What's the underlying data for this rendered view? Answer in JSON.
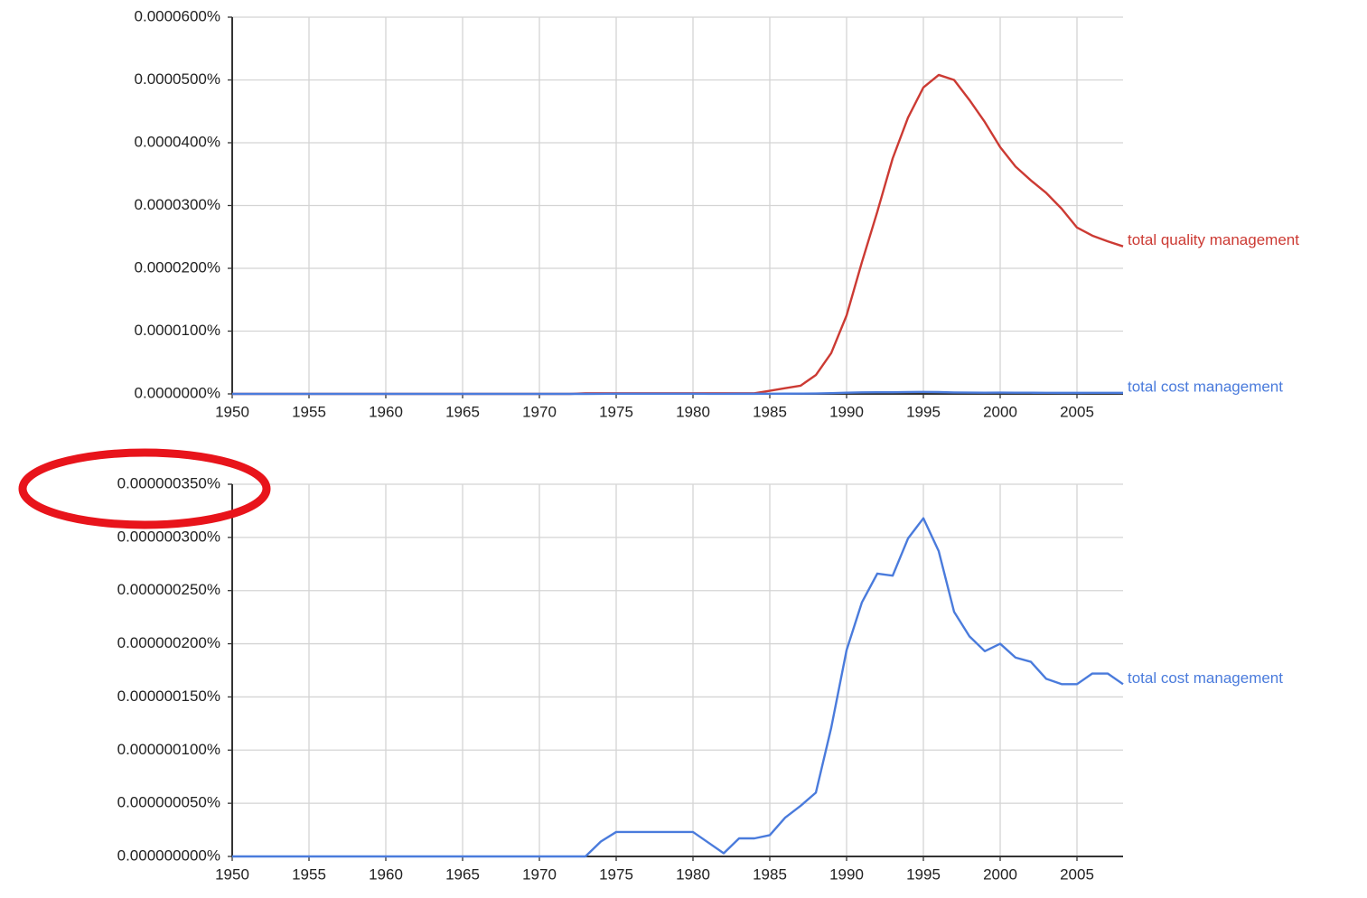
{
  "chart_data": [
    {
      "type": "line",
      "x": [
        1950,
        1951,
        1952,
        1953,
        1954,
        1955,
        1956,
        1957,
        1958,
        1959,
        1960,
        1961,
        1962,
        1963,
        1964,
        1965,
        1966,
        1967,
        1968,
        1969,
        1970,
        1971,
        1972,
        1973,
        1974,
        1975,
        1976,
        1977,
        1978,
        1979,
        1980,
        1981,
        1982,
        1983,
        1984,
        1985,
        1986,
        1987,
        1988,
        1989,
        1990,
        1991,
        1992,
        1993,
        1994,
        1995,
        1996,
        1997,
        1998,
        1999,
        2000,
        2001,
        2002,
        2003,
        2004,
        2005,
        2006,
        2007,
        2008
      ],
      "series": [
        {
          "name": "total quality management",
          "color": "#cc3a33",
          "values": [
            0,
            0,
            0,
            0,
            0,
            0,
            0,
            0,
            0,
            0,
            0,
            0,
            0,
            0,
            0,
            0,
            0,
            0,
            0,
            0,
            0,
            0,
            0,
            1e-07,
            1e-07,
            1e-07,
            1e-07,
            1e-07,
            1e-07,
            1e-07,
            1e-07,
            1e-07,
            1e-07,
            1e-07,
            1e-07,
            5e-07,
            9e-07,
            1.3e-06,
            3e-06,
            6.5e-06,
            1.25e-05,
            2.1e-05,
            2.9e-05,
            3.75e-05,
            4.4e-05,
            4.88e-05,
            5.08e-05,
            5e-05,
            4.68e-05,
            4.33e-05,
            3.93e-05,
            3.62e-05,
            3.4e-05,
            3.2e-05,
            2.95e-05,
            2.65e-05,
            2.52e-05,
            2.43e-05,
            2.35e-05
          ]
        },
        {
          "name": "total cost management",
          "color": "#4a7bdc",
          "values": [
            0,
            0,
            0,
            0,
            0,
            0,
            0,
            0,
            0,
            0,
            0,
            0,
            0,
            0,
            0,
            0,
            0,
            0,
            0,
            0,
            0,
            0,
            0,
            0,
            1.4e-08,
            2.3e-08,
            2.3e-08,
            2.3e-08,
            2.3e-08,
            2.3e-08,
            2.3e-08,
            1.3e-08,
            3e-09,
            1.7e-08,
            1.7e-08,
            2e-08,
            3.65e-08,
            4.75e-08,
            6e-08,
            1.21e-07,
            1.94e-07,
            2.39e-07,
            2.66e-07,
            2.64e-07,
            2.99e-07,
            3.18e-07,
            2.87e-07,
            2.3e-07,
            2.07e-07,
            1.93e-07,
            2e-07,
            1.87e-07,
            1.83e-07,
            1.67e-07,
            1.62e-07,
            1.62e-07,
            1.72e-07,
            1.72e-07,
            1.62e-07
          ]
        }
      ],
      "xlim": [
        1950,
        2008
      ],
      "xticks": [
        1950,
        1955,
        1960,
        1965,
        1970,
        1975,
        1980,
        1985,
        1990,
        1995,
        2000,
        2005
      ],
      "ylim": [
        0,
        6e-05
      ],
      "yticks": [
        {
          "value": 0,
          "label": "0.0000000%"
        },
        {
          "value": 1e-05,
          "label": "0.0000100%"
        },
        {
          "value": 2e-05,
          "label": "0.0000200%"
        },
        {
          "value": 3e-05,
          "label": "0.0000300%"
        },
        {
          "value": 4e-05,
          "label": "0.0000400%"
        },
        {
          "value": 5e-05,
          "label": "0.0000500%"
        },
        {
          "value": 6e-05,
          "label": "0.0000600%"
        }
      ],
      "grid": true
    },
    {
      "type": "line",
      "x": [
        1950,
        1951,
        1952,
        1953,
        1954,
        1955,
        1956,
        1957,
        1958,
        1959,
        1960,
        1961,
        1962,
        1963,
        1964,
        1965,
        1966,
        1967,
        1968,
        1969,
        1970,
        1971,
        1972,
        1973,
        1974,
        1975,
        1976,
        1977,
        1978,
        1979,
        1980,
        1981,
        1982,
        1983,
        1984,
        1985,
        1986,
        1987,
        1988,
        1989,
        1990,
        1991,
        1992,
        1993,
        1994,
        1995,
        1996,
        1997,
        1998,
        1999,
        2000,
        2001,
        2002,
        2003,
        2004,
        2005,
        2006,
        2007,
        2008
      ],
      "series": [
        {
          "name": "total cost management",
          "color": "#4a7bdc",
          "values": [
            0,
            0,
            0,
            0,
            0,
            0,
            0,
            0,
            0,
            0,
            0,
            0,
            0,
            0,
            0,
            0,
            0,
            0,
            0,
            0,
            0,
            0,
            0,
            0,
            1.4e-08,
            2.3e-08,
            2.3e-08,
            2.3e-08,
            2.3e-08,
            2.3e-08,
            2.3e-08,
            1.3e-08,
            3e-09,
            1.7e-08,
            1.7e-08,
            2e-08,
            3.65e-08,
            4.75e-08,
            6e-08,
            1.21e-07,
            1.94e-07,
            2.39e-07,
            2.66e-07,
            2.64e-07,
            2.99e-07,
            3.18e-07,
            2.87e-07,
            2.3e-07,
            2.07e-07,
            1.93e-07,
            2e-07,
            1.87e-07,
            1.83e-07,
            1.67e-07,
            1.62e-07,
            1.62e-07,
            1.72e-07,
            1.72e-07,
            1.62e-07
          ]
        }
      ],
      "xlim": [
        1950,
        2008
      ],
      "xticks": [
        1950,
        1955,
        1960,
        1965,
        1970,
        1975,
        1980,
        1985,
        1990,
        1995,
        2000,
        2005
      ],
      "ylim": [
        0,
        3.5e-07
      ],
      "yticks": [
        {
          "value": 0,
          "label": "0.000000000%"
        },
        {
          "value": 5e-08,
          "label": "0.000000050%"
        },
        {
          "value": 1e-07,
          "label": "0.000000100%"
        },
        {
          "value": 1.5e-07,
          "label": "0.000000150%"
        },
        {
          "value": 2e-07,
          "label": "0.000000200%"
        },
        {
          "value": 2.5e-07,
          "label": "0.000000250%"
        },
        {
          "value": 3e-07,
          "label": "0.000000300%"
        },
        {
          "value": 3.5e-07,
          "label": "0.000000350%"
        }
      ],
      "grid": true
    }
  ]
}
